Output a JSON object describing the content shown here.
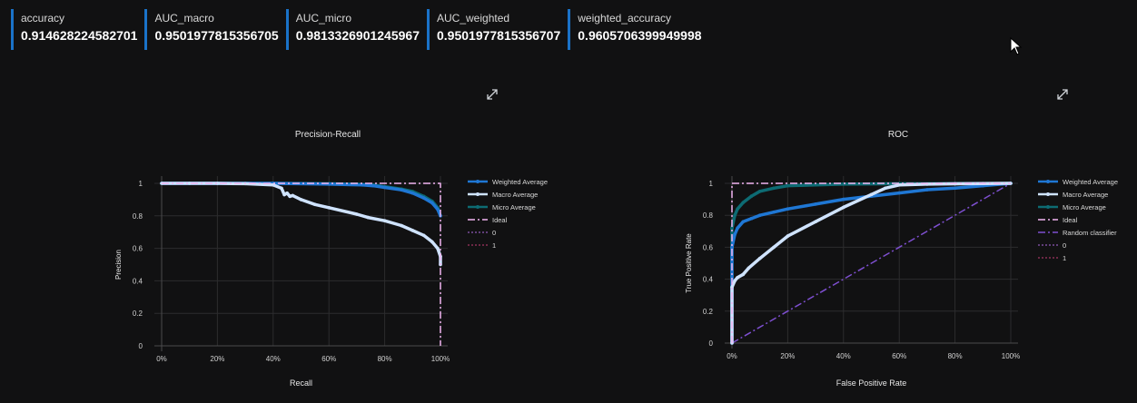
{
  "metrics": [
    {
      "name": "accuracy",
      "value": "0.914628224582701"
    },
    {
      "name": "AUC_macro",
      "value": "0.9501977815356705"
    },
    {
      "name": "AUC_micro",
      "value": "0.9813326901245967"
    },
    {
      "name": "AUC_weighted",
      "value": "0.9501977815356707"
    },
    {
      "name": "weighted_accuracy",
      "value": "0.9605706399949998"
    }
  ],
  "icons": {
    "expand": "expand-arrows-icon",
    "cursor": "mouse-pointer-icon"
  },
  "chart_data": [
    {
      "type": "line",
      "title": "Precision-Recall",
      "xlabel": "Recall",
      "ylabel": "Precision",
      "xlim": [
        0,
        1
      ],
      "ylim": [
        0,
        1
      ],
      "x_tick_labels": [
        "0%",
        "20%",
        "40%",
        "60%",
        "80%",
        "100%"
      ],
      "y_tick_labels": [
        "0",
        "0.2",
        "0.4",
        "0.6",
        "0.8",
        "1"
      ],
      "grid": true,
      "legend_position": "right",
      "series": [
        {
          "name": "Weighted Average",
          "color": "#1f77d4",
          "dash": "solid",
          "marker": true,
          "x": [
            0,
            0.2,
            0.4,
            0.6,
            0.72,
            0.76,
            0.8,
            0.86,
            0.9,
            0.94,
            0.97,
            0.99,
            1.0
          ],
          "y": [
            1,
            1,
            1,
            0.995,
            0.99,
            0.985,
            0.975,
            0.96,
            0.94,
            0.91,
            0.88,
            0.84,
            0.8
          ]
        },
        {
          "name": "Macro Average",
          "color": "#cfe3ff",
          "dash": "solid",
          "marker": true,
          "x": [
            0,
            0.1,
            0.2,
            0.3,
            0.4,
            0.43,
            0.44,
            0.45,
            0.46,
            0.47,
            0.5,
            0.55,
            0.6,
            0.7,
            0.74,
            0.8,
            0.86,
            0.9,
            0.94,
            0.97,
            0.99,
            1.0,
            1.0
          ],
          "y": [
            1,
            1,
            1,
            0.998,
            0.99,
            0.97,
            0.93,
            0.94,
            0.92,
            0.925,
            0.9,
            0.87,
            0.85,
            0.81,
            0.79,
            0.77,
            0.74,
            0.71,
            0.68,
            0.64,
            0.6,
            0.55,
            0.5
          ]
        },
        {
          "name": "Micro Average",
          "color": "#0d6b73",
          "dash": "solid",
          "marker": true,
          "x": [
            0,
            0.2,
            0.4,
            0.6,
            0.7,
            0.76,
            0.8,
            0.86,
            0.9,
            0.94,
            0.97,
            0.99,
            1.0
          ],
          "y": [
            1,
            1,
            1,
            0.998,
            0.995,
            0.99,
            0.98,
            0.965,
            0.95,
            0.92,
            0.89,
            0.85,
            0.8
          ]
        },
        {
          "name": "Ideal",
          "color": "#f2b6f2",
          "dash": "dashdot",
          "marker": false,
          "x": [
            0,
            1,
            1
          ],
          "y": [
            1,
            1,
            0
          ]
        },
        {
          "name": "0",
          "color": "#7a4e9c",
          "dash": "dot",
          "marker": false,
          "x": [],
          "y": []
        },
        {
          "name": "1",
          "color": "#8b2f55",
          "dash": "dot",
          "marker": false,
          "x": [],
          "y": []
        }
      ]
    },
    {
      "type": "line",
      "title": "ROC",
      "xlabel": "False Positive Rate",
      "ylabel": "True Positive Rate",
      "xlim": [
        0,
        1
      ],
      "ylim": [
        0,
        1
      ],
      "x_tick_labels": [
        "0%",
        "20%",
        "40%",
        "60%",
        "80%",
        "100%"
      ],
      "y_tick_labels": [
        "0",
        "0.2",
        "0.4",
        "0.6",
        "0.8",
        "1"
      ],
      "grid": true,
      "legend_position": "right",
      "series": [
        {
          "name": "Weighted Average",
          "color": "#1f77d4",
          "dash": "solid",
          "marker": true,
          "x": [
            0,
            0,
            0.01,
            0.02,
            0.04,
            0.07,
            0.1,
            0.15,
            0.2,
            0.3,
            0.4,
            0.5,
            0.6,
            0.7,
            0.8,
            0.9,
            1.0
          ],
          "y": [
            0,
            0.6,
            0.68,
            0.72,
            0.76,
            0.78,
            0.8,
            0.82,
            0.84,
            0.87,
            0.9,
            0.92,
            0.94,
            0.96,
            0.97,
            0.985,
            1
          ]
        },
        {
          "name": "Macro Average",
          "color": "#cfe3ff",
          "dash": "solid",
          "marker": true,
          "x": [
            0,
            0,
            0.01,
            0.02,
            0.04,
            0.06,
            0.1,
            0.15,
            0.2,
            0.3,
            0.4,
            0.5,
            0.55,
            0.6,
            0.7,
            0.8,
            0.9,
            1.0
          ],
          "y": [
            0,
            0.35,
            0.39,
            0.41,
            0.43,
            0.47,
            0.53,
            0.6,
            0.67,
            0.76,
            0.85,
            0.93,
            0.97,
            0.99,
            0.995,
            0.997,
            0.999,
            1
          ]
        },
        {
          "name": "Micro Average",
          "color": "#0d6b73",
          "dash": "solid",
          "marker": true,
          "x": [
            0,
            0,
            0.01,
            0.02,
            0.04,
            0.07,
            0.1,
            0.15,
            0.2,
            0.3,
            0.4,
            0.6,
            0.8,
            1.0
          ],
          "y": [
            0,
            0.72,
            0.8,
            0.84,
            0.88,
            0.92,
            0.95,
            0.97,
            0.985,
            0.99,
            0.995,
            0.998,
            0.999,
            1
          ]
        },
        {
          "name": "Ideal",
          "color": "#f2b6f2",
          "dash": "dashdot",
          "marker": false,
          "x": [
            0,
            0,
            1
          ],
          "y": [
            0,
            1,
            1
          ]
        },
        {
          "name": "Random classifier",
          "color": "#7e4fd0",
          "dash": "dashdot",
          "marker": false,
          "x": [
            0,
            1
          ],
          "y": [
            0,
            1
          ]
        },
        {
          "name": "0",
          "color": "#7a4e9c",
          "dash": "dot",
          "marker": false,
          "x": [],
          "y": []
        },
        {
          "name": "1",
          "color": "#8b2f55",
          "dash": "dot",
          "marker": false,
          "x": [],
          "y": []
        }
      ]
    }
  ]
}
